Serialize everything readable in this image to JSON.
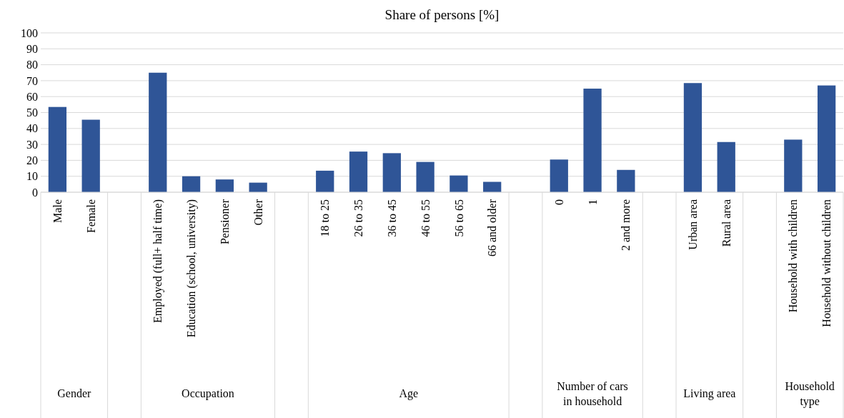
{
  "chart_data": {
    "type": "bar",
    "title": "Share of persons [%]",
    "categories": [
      "Male",
      "Female",
      null,
      "Employed (full+ half time)",
      "Education (school, university)",
      "Pensioner",
      "Other",
      null,
      "18 to 25",
      "26 to 35",
      "36 to 45",
      "46 to 55",
      "56 to 65",
      "66 and older",
      null,
      "0",
      "1",
      "2 and more",
      null,
      "Urban area",
      "Rural area",
      null,
      "Household with children",
      "Household without children"
    ],
    "values": [
      53.5,
      45.5,
      null,
      75,
      10,
      8,
      6,
      null,
      13.5,
      25.5,
      24.5,
      19,
      10.5,
      6.5,
      null,
      20.5,
      65,
      14,
      null,
      68.5,
      31.5,
      null,
      33,
      67
    ],
    "color": "#2f5597",
    "ylim": [
      0,
      100
    ],
    "yticks": [
      0,
      10,
      20,
      30,
      40,
      50,
      60,
      70,
      80,
      90,
      100
    ],
    "grid": "y",
    "annotations": [
      "Gender",
      "Occupation",
      "Age",
      "Number of cars in household",
      "Living area",
      "Household type"
    ]
  }
}
